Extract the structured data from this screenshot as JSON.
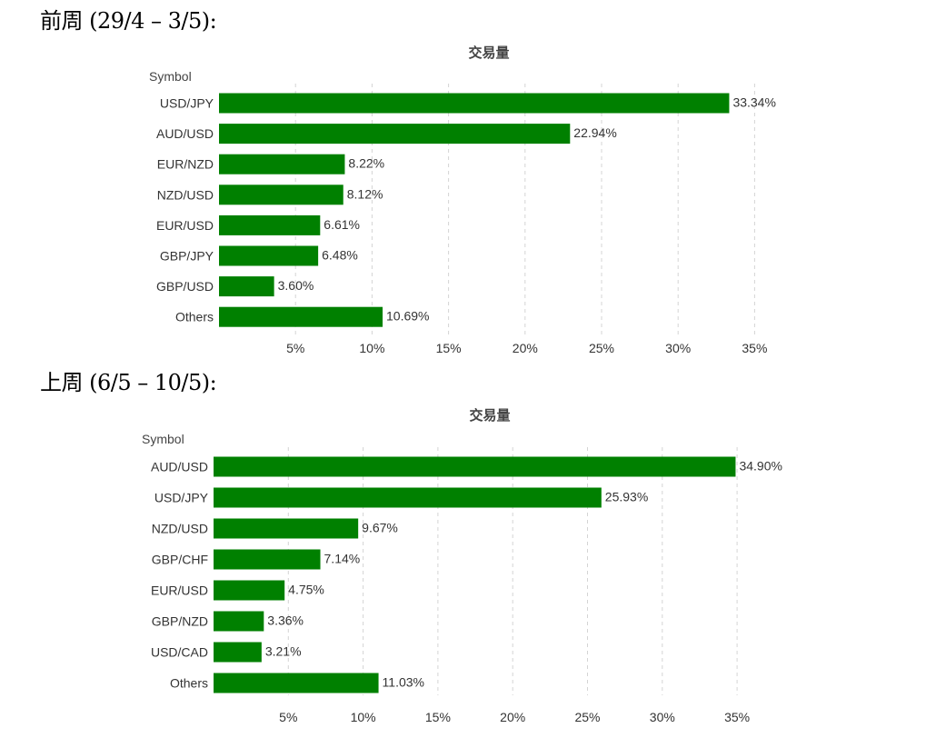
{
  "headings": [
    "前周 (29/4 – 3/5):",
    "上周 (6/5 – 10/5):"
  ],
  "colors": {
    "bar": "#008000"
  },
  "chart_data": [
    {
      "type": "bar",
      "orientation": "horizontal",
      "title": "交易量",
      "ylabel": "Symbol",
      "xlabel": "",
      "categories": [
        "USD/JPY",
        "AUD/USD",
        "EUR/NZD",
        "NZD/USD",
        "EUR/USD",
        "GBP/JPY",
        "GBP/USD",
        "Others"
      ],
      "values": [
        33.34,
        22.94,
        8.22,
        8.12,
        6.61,
        6.48,
        3.6,
        10.69
      ],
      "data_labels": [
        "33.34%",
        "22.94%",
        "8.22%",
        "8.12%",
        "6.61%",
        "6.48%",
        "3.60%",
        "10.69%"
      ],
      "xticks": [
        5,
        10,
        15,
        20,
        25,
        30,
        35
      ],
      "xtick_labels": [
        "5%",
        "10%",
        "15%",
        "20%",
        "25%",
        "30%",
        "35%"
      ],
      "xlim": [
        0,
        35
      ],
      "grid": true
    },
    {
      "type": "bar",
      "orientation": "horizontal",
      "title": "交易量",
      "ylabel": "Symbol",
      "xlabel": "",
      "categories": [
        "AUD/USD",
        "USD/JPY",
        "NZD/USD",
        "GBP/CHF",
        "EUR/USD",
        "GBP/NZD",
        "USD/CAD",
        "Others"
      ],
      "values": [
        34.9,
        25.93,
        9.67,
        7.14,
        4.75,
        3.36,
        3.21,
        11.03
      ],
      "data_labels": [
        "34.90%",
        "25.93%",
        "9.67%",
        "7.14%",
        "4.75%",
        "3.36%",
        "3.21%",
        "11.03%"
      ],
      "xticks": [
        5,
        10,
        15,
        20,
        25,
        30,
        35
      ],
      "xtick_labels": [
        "5%",
        "10%",
        "15%",
        "20%",
        "25%",
        "30%",
        "35%"
      ],
      "xlim": [
        0,
        35
      ],
      "grid": true
    }
  ]
}
